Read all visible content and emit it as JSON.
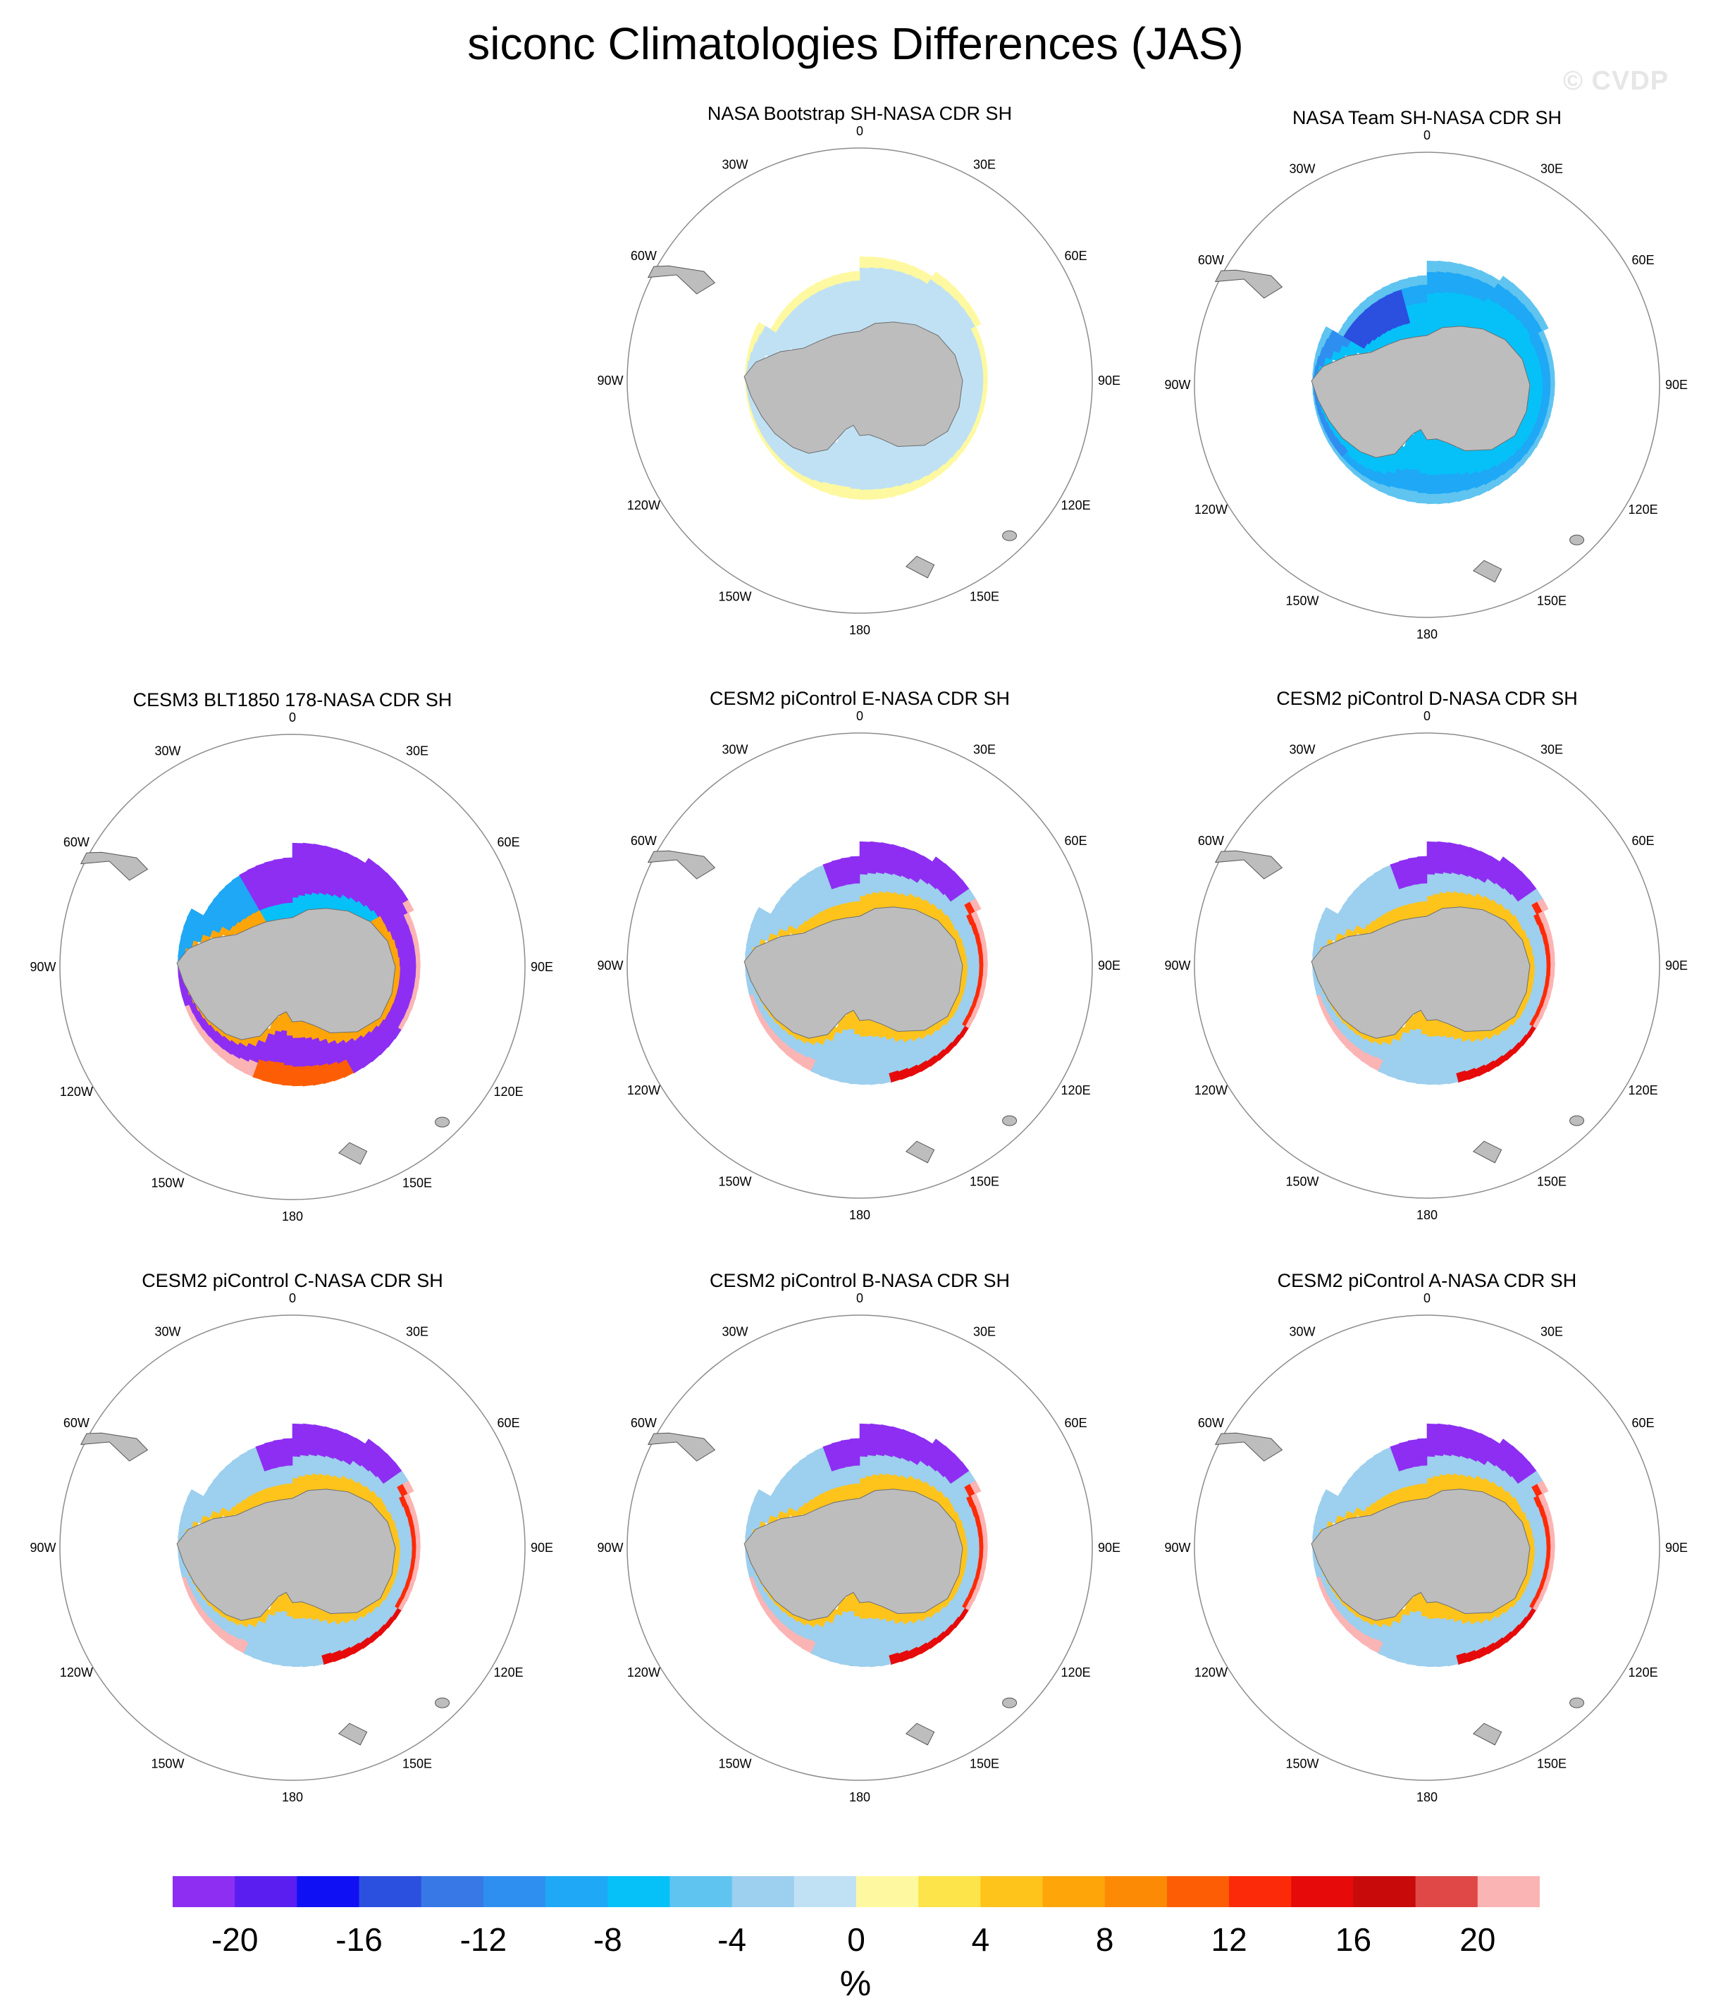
{
  "title": "siconc Climatologies Differences (JAS)",
  "watermark": "© CVDP",
  "units": "%",
  "colors": {
    "land": "#bdbdbd",
    "circle": "#8c8c8c",
    "levels": [
      "#8d2ef2",
      "#5a1ef0",
      "#1010f5",
      "#2b50e0",
      "#3878e6",
      "#2f8ff0",
      "#1ea8f5",
      "#06c1f8",
      "#5fc4f0",
      "#9dcfee",
      "#c0e1f4",
      "#fef9a0",
      "#fde44a",
      "#fec41c",
      "#fea50a",
      "#fd8a05",
      "#fd5e05",
      "#fc2a08",
      "#e60a0a",
      "#c80a0a",
      "#e04848",
      "#fbb4b4"
    ]
  },
  "chart_data": [
    {
      "type": "heatmap",
      "title": "NASA Bootstrap SH-NASA CDR SH",
      "pattern": "bootstrap"
    },
    {
      "type": "heatmap",
      "title": "NASA Team SH-NASA CDR SH",
      "pattern": "team"
    },
    {
      "type": "heatmap",
      "title": "CESM3 BLT1850 178-NASA CDR SH",
      "pattern": "cesm3"
    },
    {
      "type": "heatmap",
      "title": "CESM2 piControl E-NASA CDR SH",
      "pattern": "cesm2"
    },
    {
      "type": "heatmap",
      "title": "CESM2 piControl D-NASA CDR SH",
      "pattern": "cesm2"
    },
    {
      "type": "heatmap",
      "title": "CESM2 piControl C-NASA CDR SH",
      "pattern": "cesm2"
    },
    {
      "type": "heatmap",
      "title": "CESM2 piControl B-NASA CDR SH",
      "pattern": "cesm2"
    },
    {
      "type": "heatmap",
      "title": "CESM2 piControl A-NASA CDR SH",
      "pattern": "cesm2"
    }
  ],
  "longitude_labels": [
    "0",
    "30E",
    "60E",
    "90E",
    "120E",
    "150E",
    "180",
    "150W",
    "120W",
    "90W",
    "60W",
    "30W"
  ],
  "colorbar": {
    "levels": [
      -22,
      -20,
      -18,
      -16,
      -14,
      -12,
      -10,
      -8,
      -6,
      -4,
      -2,
      0,
      2,
      4,
      6,
      8,
      10,
      12,
      14,
      16,
      18,
      20,
      22
    ],
    "tick_labels": [
      "-20",
      "-16",
      "-12",
      "-8",
      "-4",
      "0",
      "4",
      "8",
      "12",
      "16",
      "20"
    ]
  }
}
